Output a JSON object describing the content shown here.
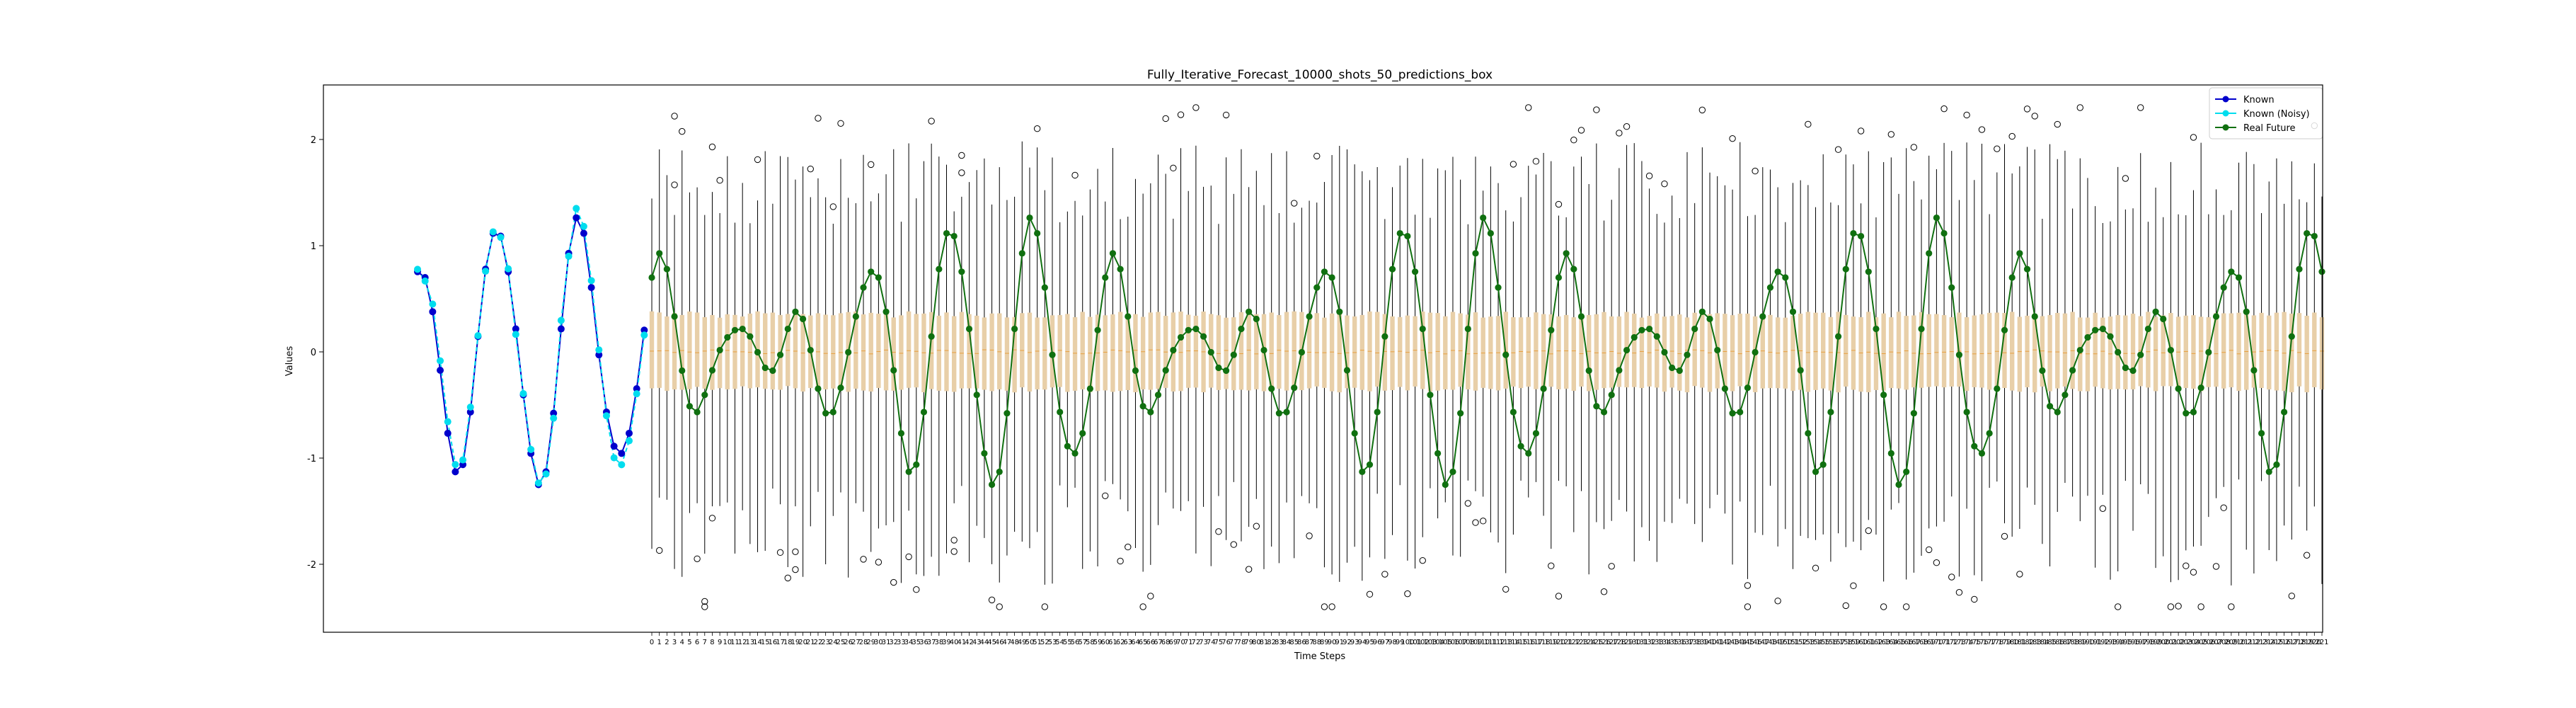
{
  "chart_data": {
    "type": "box",
    "title": "Fully_Iterative_Forecast_10000_shots_50_predictions_box",
    "xlabel": "Time Steps",
    "ylabel": "Values",
    "ylim": [
      -2.6,
      2.6
    ],
    "yticks": [
      -2,
      -1,
      0,
      1,
      2
    ],
    "grid": false,
    "legend_position": "top-right",
    "legend": [
      "Known",
      "Known (Noisy)",
      "Real Future"
    ],
    "colors": {
      "known": "#0000cc",
      "known_noisy": "#00ddee",
      "real_future": "#107010",
      "box_fill": "#e8cfa8",
      "box_edge": "#000000",
      "median": "#e8a040"
    },
    "known_series": {
      "x_range": [
        -31,
        -1
      ],
      "signal": "0.55*sin(2*pi*t/12) + 0.70*cos(2*pi*t/10) + 0.10*sin(2*pi*t/6)"
    },
    "forecast": {
      "x_range": [
        0,
        221
      ],
      "box_stats": {
        "median": 0.0,
        "q1": -0.35,
        "q3": 0.35,
        "whisker_low_range": [
          -1.2,
          -2.2
        ],
        "whisker_high_range": [
          1.2,
          2.0
        ],
        "outlier_range": [
          -2.4,
          2.3
        ]
      }
    },
    "sample_outliers": [
      {
        "x": 3,
        "y": 2.22
      },
      {
        "x": 8,
        "y": 1.93
      },
      {
        "x": 7,
        "y": -2.4
      },
      {
        "x": 22,
        "y": 2.2
      },
      {
        "x": 19,
        "y": -2.05
      },
      {
        "x": 41,
        "y": 1.85
      },
      {
        "x": 40,
        "y": -1.88
      },
      {
        "x": 116,
        "y": 2.3
      },
      {
        "x": 120,
        "y": -2.3
      },
      {
        "x": 160,
        "y": 2.08
      },
      {
        "x": 145,
        "y": -2.2
      },
      {
        "x": 172,
        "y": -2.12
      },
      {
        "x": 204,
        "y": 2.02
      },
      {
        "x": 207,
        "y": -2.02
      }
    ]
  }
}
